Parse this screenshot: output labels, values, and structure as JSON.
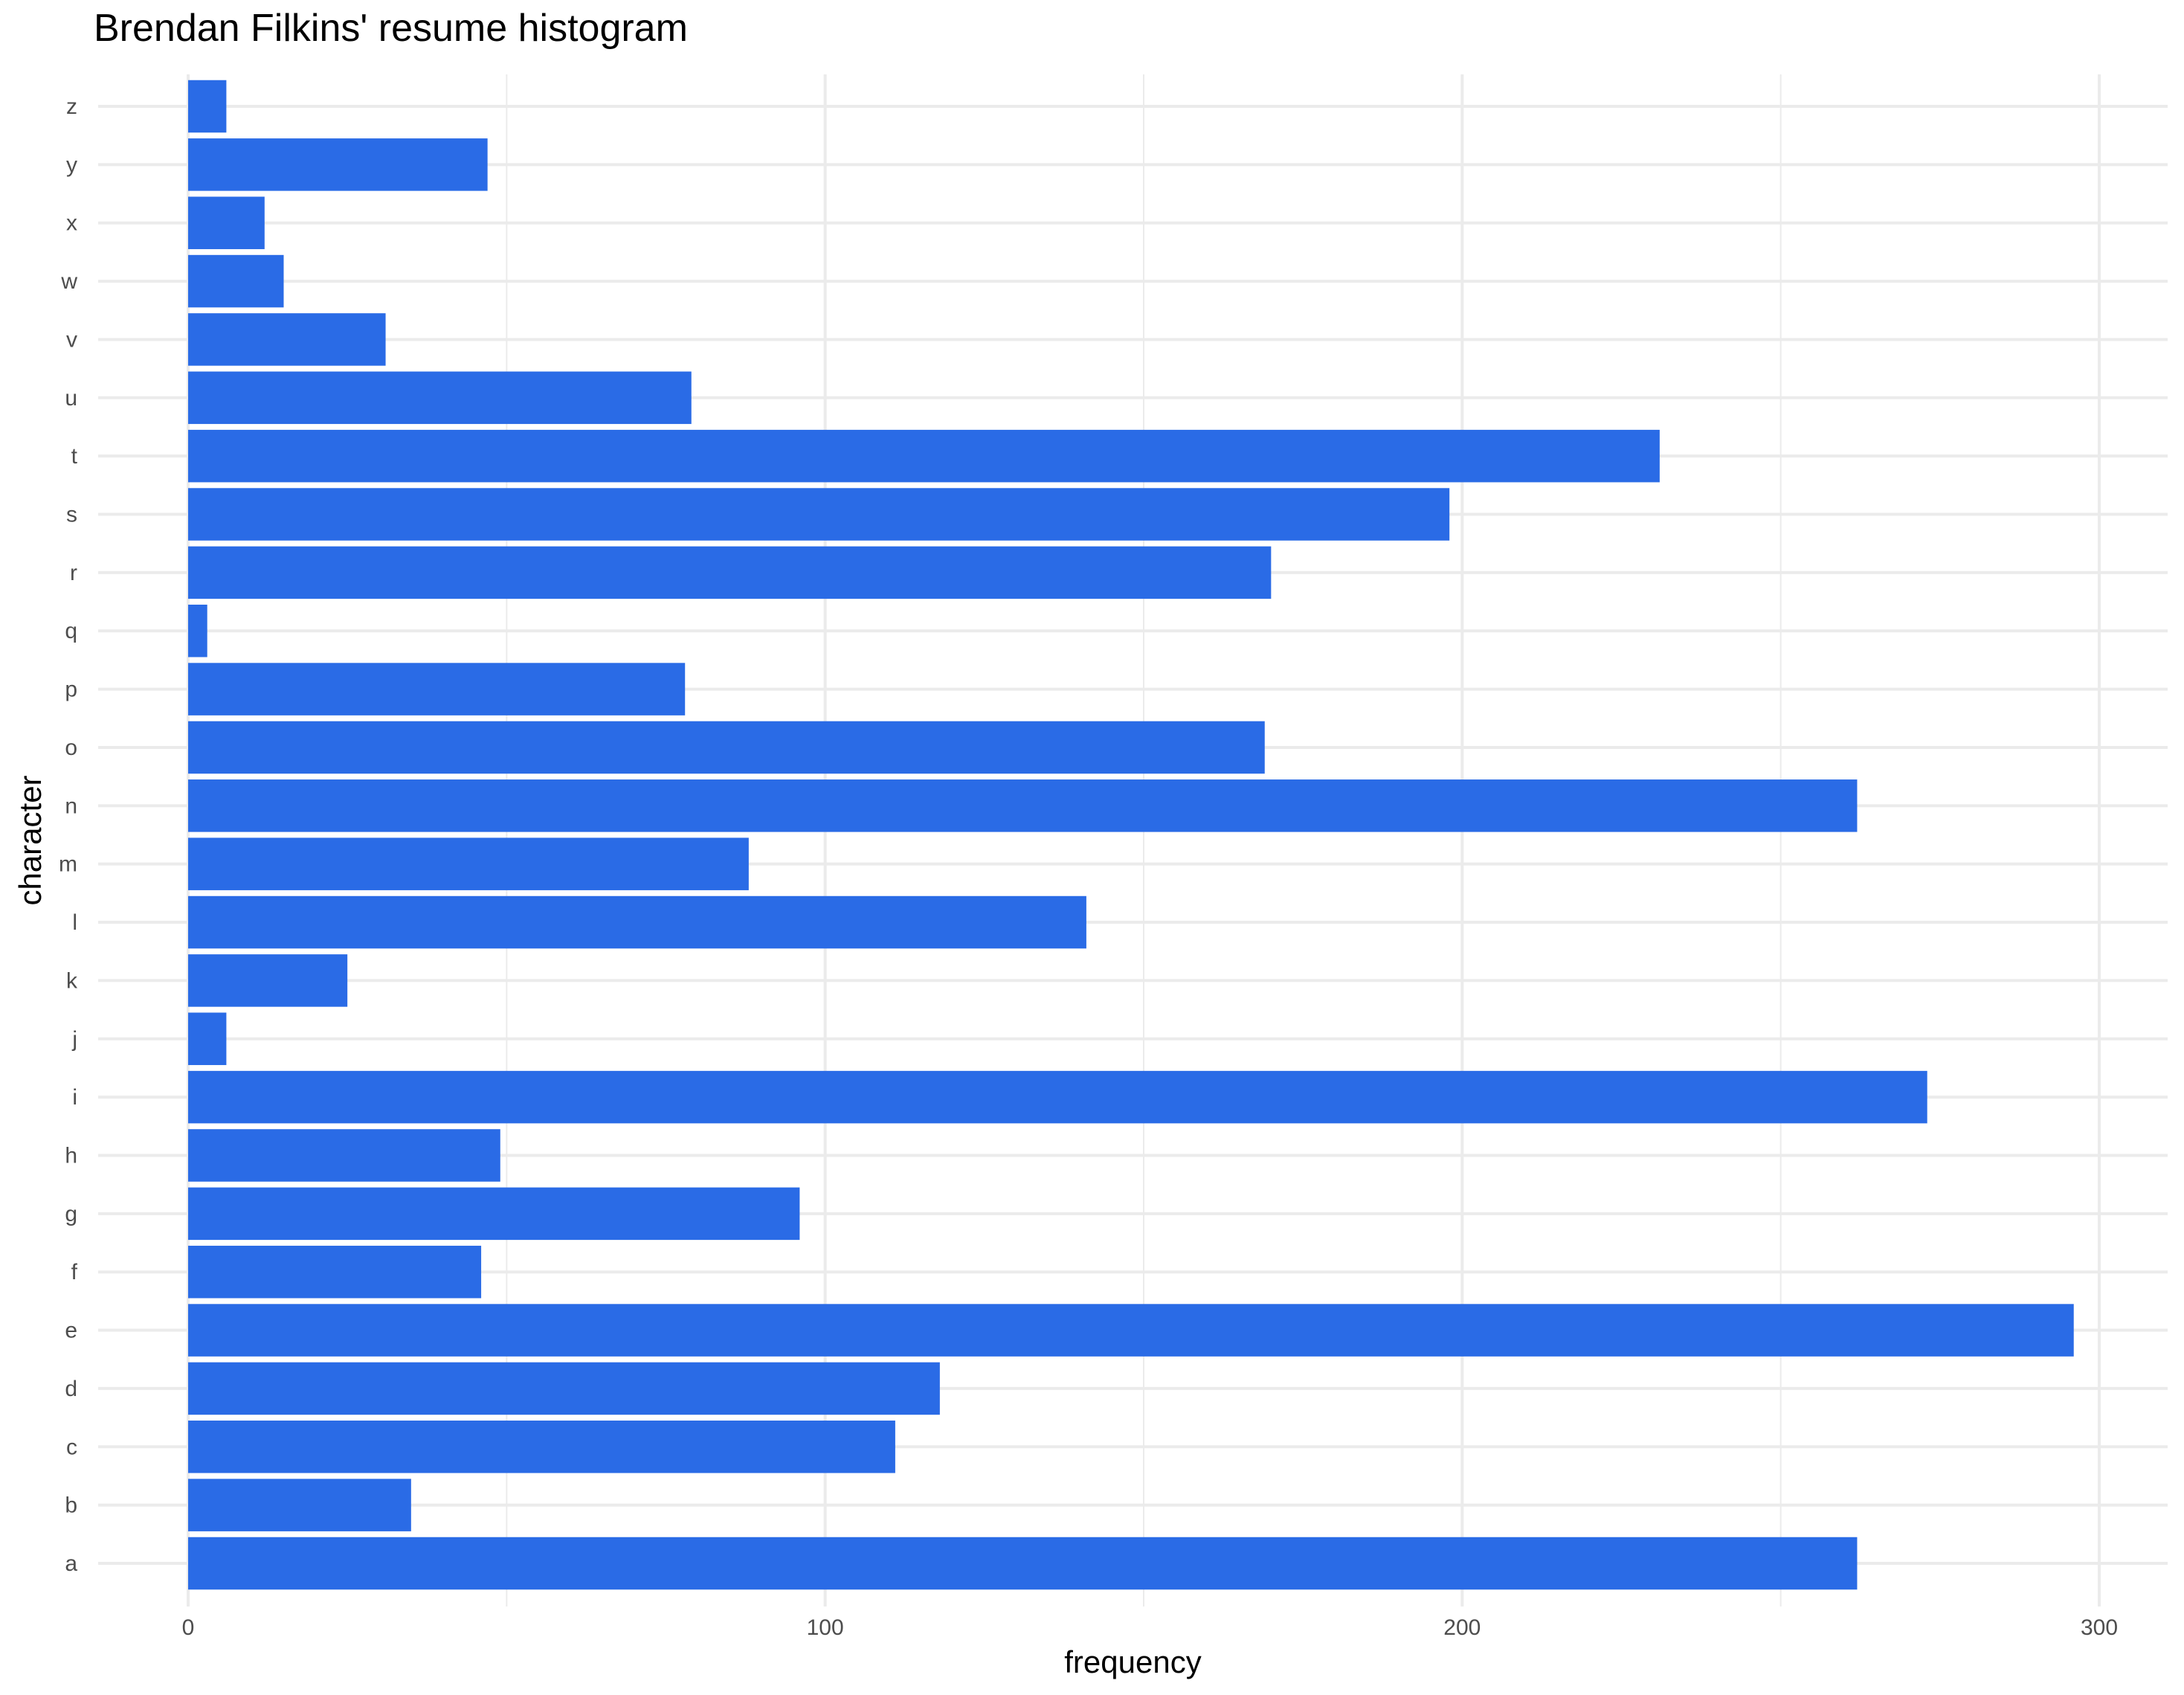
{
  "chart_data": {
    "type": "bar",
    "orientation": "horizontal",
    "title": "Brendan Filkins' resume histogram",
    "xlabel": "frequency",
    "ylabel": "character",
    "xlim": [
      0,
      300
    ],
    "x_ticks": [
      0,
      100,
      200,
      300
    ],
    "grid": true,
    "bar_color": "#2a6be6",
    "grid_color": "#ebebeb",
    "categories": [
      "a",
      "b",
      "c",
      "d",
      "e",
      "f",
      "g",
      "h",
      "i",
      "j",
      "k",
      "l",
      "m",
      "n",
      "o",
      "p",
      "q",
      "r",
      "s",
      "t",
      "u",
      "v",
      "w",
      "x",
      "y",
      "z"
    ],
    "values": [
      262,
      35,
      111,
      118,
      296,
      46,
      96,
      49,
      273,
      6,
      25,
      141,
      88,
      262,
      169,
      78,
      3,
      170,
      198,
      231,
      79,
      31,
      15,
      12,
      47,
      6
    ]
  }
}
